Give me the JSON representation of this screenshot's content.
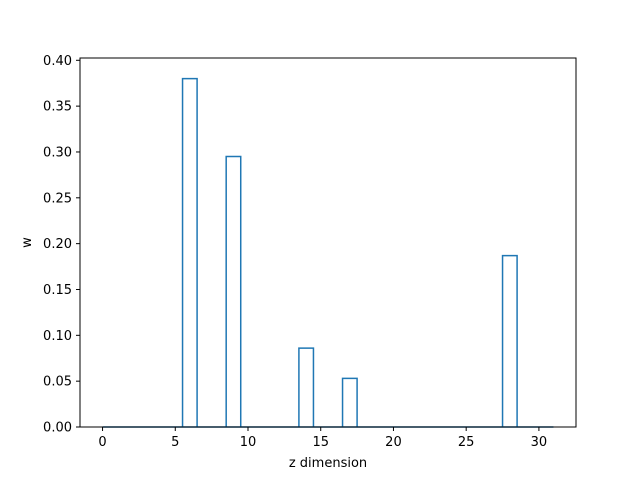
{
  "chart_data": {
    "type": "bar",
    "style": "step-outline",
    "xlabel": "z dimension",
    "ylabel": "w",
    "xlim": [
      -1.55,
      32.55
    ],
    "ylim": [
      0.0,
      0.4025
    ],
    "xticks": [
      0,
      5,
      10,
      15,
      20,
      25,
      30
    ],
    "xtick_labels": [
      "0",
      "5",
      "10",
      "15",
      "20",
      "25",
      "30"
    ],
    "yticks": [
      0.0,
      0.05,
      0.1,
      0.15,
      0.2,
      0.25,
      0.3,
      0.35,
      0.4
    ],
    "ytick_labels": [
      "0.00",
      "0.05",
      "0.10",
      "0.15",
      "0.20",
      "0.25",
      "0.30",
      "0.35",
      "0.40"
    ],
    "x": [
      0,
      1,
      2,
      3,
      4,
      5,
      6,
      7,
      8,
      9,
      10,
      11,
      12,
      13,
      14,
      15,
      16,
      17,
      18,
      19,
      20,
      21,
      22,
      23,
      24,
      25,
      26,
      27,
      28,
      29,
      30,
      31
    ],
    "values": [
      0,
      0,
      0,
      0,
      0,
      0,
      0.38,
      0,
      0,
      0.295,
      0,
      0,
      0,
      0,
      0.086,
      0,
      0,
      0.053,
      0,
      0,
      0,
      0,
      0,
      0,
      0,
      0,
      0,
      0,
      0.187,
      0,
      0,
      0
    ],
    "grid": false,
    "legend": "none",
    "colors": {
      "series": "#1f77b4",
      "axes": "#000000",
      "background": "#ffffff"
    }
  }
}
